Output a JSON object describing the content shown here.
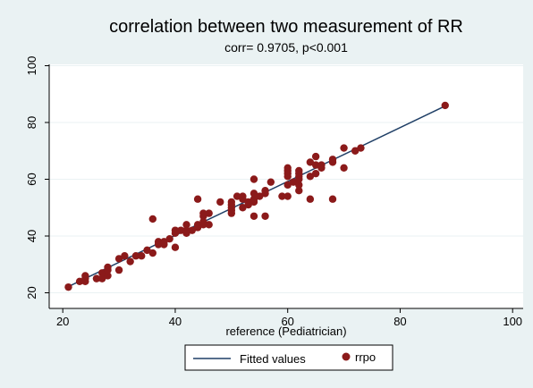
{
  "chart_data": {
    "type": "scatter",
    "title": "correlation between two measurement  of RR",
    "subtitle": "corr= 0.9705, p<0.001",
    "xlabel": "reference (Pediatrician)",
    "ylabel": "",
    "xlim": [
      20,
      100
    ],
    "ylim": [
      20,
      100
    ],
    "xticks": [
      "20",
      "40",
      "60",
      "80",
      "100"
    ],
    "yticks": [
      "20",
      "40",
      "60",
      "80",
      "100"
    ],
    "grid": "horizontal",
    "legend_position": "bottom",
    "series": [
      {
        "name": "rrpo",
        "kind": "scatter",
        "color": "#8b1a1a",
        "points": [
          [
            21,
            22
          ],
          [
            23,
            24
          ],
          [
            24,
            24
          ],
          [
            24,
            25
          ],
          [
            24,
            26
          ],
          [
            26,
            25
          ],
          [
            27,
            25
          ],
          [
            27,
            27
          ],
          [
            28,
            26
          ],
          [
            28,
            28
          ],
          [
            28,
            29
          ],
          [
            30,
            28
          ],
          [
            30,
            32
          ],
          [
            31,
            33
          ],
          [
            32,
            31
          ],
          [
            33,
            33
          ],
          [
            34,
            33
          ],
          [
            35,
            35
          ],
          [
            36,
            34
          ],
          [
            36,
            46
          ],
          [
            37,
            38
          ],
          [
            37,
            37
          ],
          [
            38,
            37
          ],
          [
            38,
            38
          ],
          [
            39,
            39
          ],
          [
            40,
            36
          ],
          [
            40,
            41
          ],
          [
            40,
            42
          ],
          [
            41,
            42
          ],
          [
            42,
            42
          ],
          [
            42,
            41
          ],
          [
            42,
            44
          ],
          [
            43,
            42
          ],
          [
            44,
            43
          ],
          [
            44,
            44
          ],
          [
            44,
            53
          ],
          [
            45,
            44
          ],
          [
            45,
            45
          ],
          [
            45,
            47
          ],
          [
            45,
            48
          ],
          [
            46,
            44
          ],
          [
            46,
            48
          ],
          [
            48,
            52
          ],
          [
            50,
            48
          ],
          [
            50,
            49
          ],
          [
            50,
            50
          ],
          [
            50,
            51
          ],
          [
            50,
            52
          ],
          [
            51,
            54
          ],
          [
            52,
            50
          ],
          [
            52,
            53
          ],
          [
            52,
            54
          ],
          [
            53,
            51
          ],
          [
            53,
            52
          ],
          [
            54,
            47
          ],
          [
            54,
            52
          ],
          [
            54,
            53
          ],
          [
            54,
            55
          ],
          [
            54,
            60
          ],
          [
            55,
            54
          ],
          [
            56,
            47
          ],
          [
            56,
            55
          ],
          [
            56,
            56
          ],
          [
            57,
            59
          ],
          [
            59,
            54
          ],
          [
            60,
            54
          ],
          [
            60,
            58
          ],
          [
            60,
            61
          ],
          [
            60,
            62
          ],
          [
            60,
            63
          ],
          [
            60,
            64
          ],
          [
            61,
            59
          ],
          [
            62,
            56
          ],
          [
            62,
            58
          ],
          [
            62,
            60
          ],
          [
            62,
            61
          ],
          [
            62,
            62
          ],
          [
            62,
            63
          ],
          [
            64,
            53
          ],
          [
            64,
            61
          ],
          [
            64,
            66
          ],
          [
            65,
            62
          ],
          [
            65,
            65
          ],
          [
            65,
            68
          ],
          [
            66,
            64
          ],
          [
            66,
            65
          ],
          [
            68,
            53
          ],
          [
            68,
            66
          ],
          [
            68,
            67
          ],
          [
            70,
            64
          ],
          [
            70,
            71
          ],
          [
            72,
            70
          ],
          [
            73,
            71
          ],
          [
            88,
            86
          ]
        ]
      },
      {
        "name": "Fitted values",
        "kind": "line",
        "color": "#1f3f66",
        "points": [
          [
            21,
            22.2
          ],
          [
            88,
            85.8
          ]
        ]
      }
    ]
  }
}
